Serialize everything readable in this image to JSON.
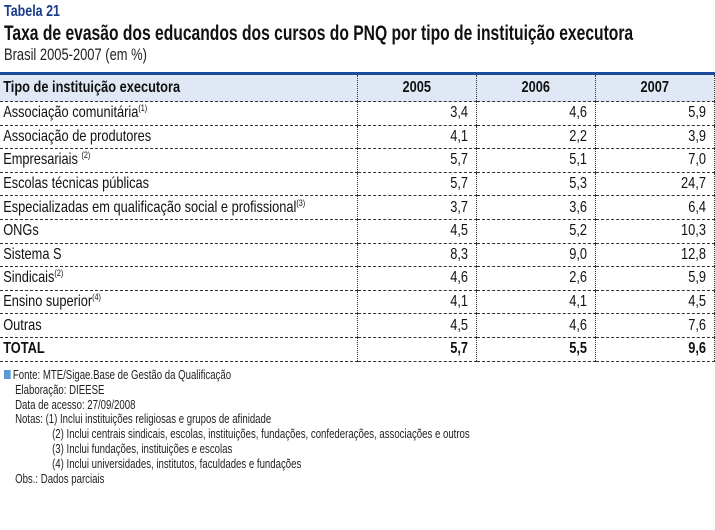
{
  "header": {
    "label": "Tabela 21",
    "title": "Taxa de evasão dos educandos dos cursos do PNQ por tipo de instituição executora",
    "subtitle": "Brasil 2005-2007 (em %)"
  },
  "colors": {
    "accent": "#1c4a9c",
    "header_bg": "#dfe8f4",
    "label": "#1a3c8c",
    "bullet": "#5b9bd5"
  },
  "table": {
    "columns": [
      "Tipo de instituição executora",
      "2005",
      "2006",
      "2007"
    ],
    "rows": [
      {
        "name": "Associação comunitária",
        "note": "(1)",
        "v2005": "3,4",
        "v2006": "4,6",
        "v2007": "5,9"
      },
      {
        "name": "Associação de produtores",
        "note": "",
        "v2005": "4,1",
        "v2006": "2,2",
        "v2007": "3,9"
      },
      {
        "name": "Empresariais ",
        "note": "(2)",
        "v2005": "5,7",
        "v2006": "5,1",
        "v2007": "7,0"
      },
      {
        "name": "Escolas técnicas públicas",
        "note": "",
        "v2005": "5,7",
        "v2006": "5,3",
        "v2007": "24,7"
      },
      {
        "name": "Especializadas em qualificação social e profissional",
        "note": "(3)",
        "v2005": "3,7",
        "v2006": "3,6",
        "v2007": "6,4"
      },
      {
        "name": "ONGs",
        "note": "",
        "v2005": "4,5",
        "v2006": "5,2",
        "v2007": "10,3"
      },
      {
        "name": "Sistema S",
        "note": "",
        "v2005": "8,3",
        "v2006": "9,0",
        "v2007": "12,8"
      },
      {
        "name": "Sindicais",
        "note": "(2)",
        "v2005": "4,6",
        "v2006": "2,6",
        "v2007": "5,9"
      },
      {
        "name": "Ensino superior",
        "note": "(4)",
        "v2005": "4,1",
        "v2006": "4,1",
        "v2007": "4,5"
      },
      {
        "name": "Outras",
        "note": "",
        "v2005": "4,5",
        "v2006": "4,6",
        "v2007": "7,6"
      }
    ],
    "total": {
      "name": "TOTAL",
      "v2005": "5,7",
      "v2006": "5,5",
      "v2007": "9,6"
    }
  },
  "notes": {
    "fonte": "Fonte: MTE/Sigae.Base de Gestão da Qualificação",
    "elaboracao": "Elaboração: DIEESE",
    "data_acesso": "Data de acesso: 27/09/2008",
    "notas_label": "Notas: (1) Inclui instituições religiosas e grupos de afinidade",
    "nota2": "(2) Inclui centrais sindicais, escolas, instituições, fundações, confederações, associações e outros",
    "nota3": "(3) Inclui fundações, instituições e escolas",
    "nota4": "(4) Inclui universidades, institutos, faculdades e fundações",
    "obs": "Obs.: Dados parciais"
  }
}
